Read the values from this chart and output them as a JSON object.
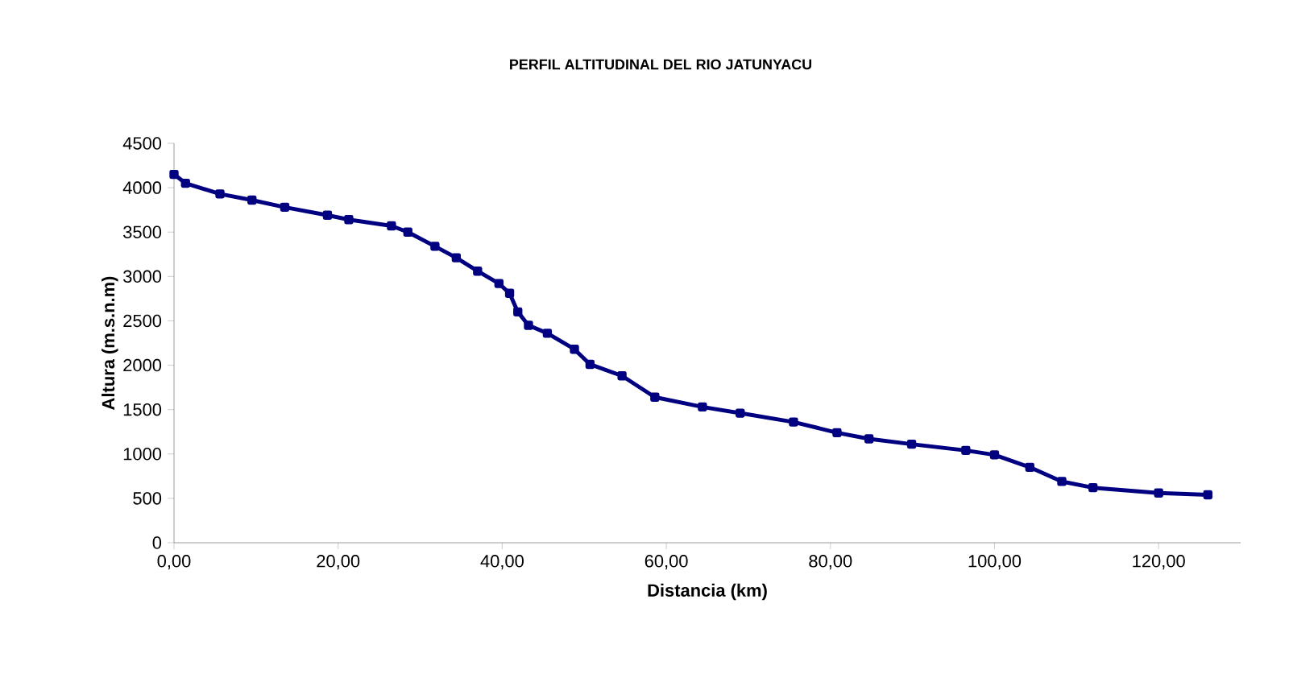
{
  "chart_data": {
    "type": "line",
    "title": "PERFIL ALTITUDINAL DEL RIO JATUNYACU",
    "xlabel": "Distancia (km)",
    "ylabel": "Altura (m.s.n.m)",
    "x": [
      0,
      1.4,
      5.6,
      9.5,
      13.5,
      18.7,
      21.3,
      26.5,
      28.5,
      31.8,
      34.4,
      37,
      39.6,
      40.9,
      41.9,
      43.2,
      45.5,
      48.8,
      50.7,
      54.6,
      58.6,
      64.4,
      69,
      75.5,
      80.8,
      84.7,
      89.9,
      96.5,
      100,
      104.3,
      108.2,
      112,
      120,
      126
    ],
    "series": [
      {
        "color": "#000080",
        "values": [
          4150,
          4050,
          3930,
          3860,
          3780,
          3690,
          3640,
          3570,
          3500,
          3340,
          3210,
          3060,
          2920,
          2810,
          2600,
          2450,
          2360,
          2180,
          2010,
          1880,
          1640,
          1530,
          1460,
          1360,
          1240,
          1170,
          1110,
          1040,
          990,
          850,
          690,
          620,
          560,
          540
        ]
      }
    ],
    "xlim": [
      0,
      130
    ],
    "ylim": [
      0,
      4500
    ],
    "xticks": [
      {
        "value": 0,
        "label": "0,00"
      },
      {
        "value": 20,
        "label": "20,00"
      },
      {
        "value": 40,
        "label": "40,00"
      },
      {
        "value": 60,
        "label": "60,00"
      },
      {
        "value": 80,
        "label": "80,00"
      },
      {
        "value": 100,
        "label": "100,00"
      },
      {
        "value": 120,
        "label": "120,00"
      }
    ],
    "yticks": [
      0,
      500,
      1000,
      1500,
      2000,
      2500,
      3000,
      3500,
      4000,
      4500
    ],
    "grid": false,
    "marker": "square",
    "line_style": "solid"
  }
}
